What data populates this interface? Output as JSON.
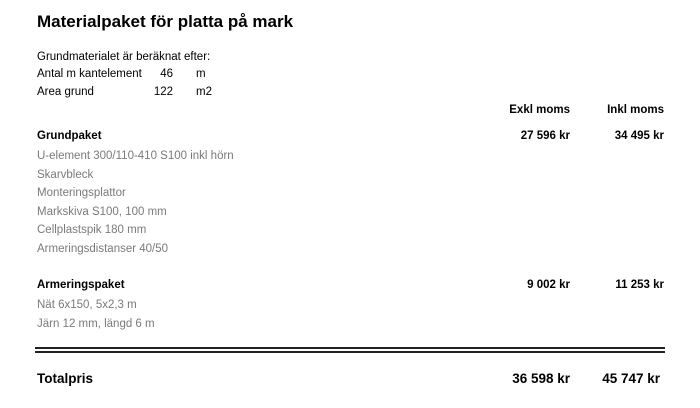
{
  "title": "Materialpaket för platta på mark",
  "basis": {
    "heading": "Grundmaterialet är beräknat efter:",
    "rows": [
      [
        "Antal m kantelement",
        46,
        "m"
      ],
      [
        "Area grund",
        122,
        "m2"
      ]
    ]
  },
  "columns": [
    "Exkl moms",
    "Inkl moms"
  ],
  "packages": [
    {
      "name": "Grundpaket",
      "exkl": "27 596 kr",
      "inkl": "34 495 kr",
      "items": [
        "U-element 300/110-410 S100 inkl hörn",
        "Skarvbleck",
        "Monteringsplattor",
        "Markskiva S100, 100 mm",
        "Cellplastspik 180 mm",
        "Armeringsdistanser 40/50"
      ]
    },
    {
      "name": "Armeringspaket",
      "exkl": "9 002 kr",
      "inkl": "11 253 kr",
      "items": [
        "Nät 6x150, 5x2,3 m",
        "Järn 12 mm, längd 6 m"
      ]
    }
  ],
  "total": {
    "label": "Totalpris",
    "exkl": "36 598 kr",
    "inkl": "45 747 kr"
  }
}
